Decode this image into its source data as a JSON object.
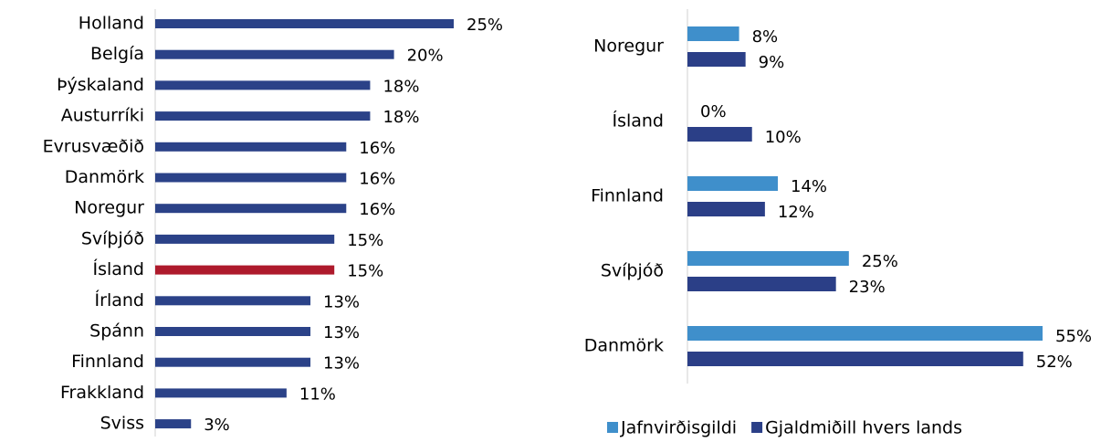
{
  "chart_data": [
    {
      "type": "bar",
      "orientation": "horizontal",
      "categories": [
        "Holland",
        "Belgía",
        "Þýskaland",
        "Austurríki",
        "Evrusvæðið",
        "Danmörk",
        "Noregur",
        "Svíþjóð",
        "Ísland",
        "Írland",
        "Spánn",
        "Finnland",
        "Frakkland",
        "Sviss"
      ],
      "values": [
        25,
        20,
        18,
        18,
        16,
        16,
        16,
        15,
        15,
        13,
        13,
        13,
        11,
        3
      ],
      "value_labels": [
        "25%",
        "20%",
        "18%",
        "18%",
        "16%",
        "16%",
        "16%",
        "15%",
        "15%",
        "13%",
        "13%",
        "13%",
        "11%",
        "3%"
      ],
      "colors": [
        "#2b4288",
        "#2b4288",
        "#2b4288",
        "#2b4288",
        "#2b4288",
        "#2b4288",
        "#2b4288",
        "#2b4288",
        "#ae1a2c",
        "#2b4288",
        "#2b4288",
        "#2b4288",
        "#2b4288",
        "#2b4288"
      ]
    },
    {
      "type": "bar",
      "orientation": "horizontal",
      "categories": [
        "Noregur",
        "Ísland",
        "Finnland",
        "Svíþjóð",
        "Danmörk"
      ],
      "series": [
        {
          "name": "Jafnvirðisgildi",
          "color": "#3f8fcb",
          "values": [
            8,
            0,
            14,
            25,
            55
          ],
          "value_labels": [
            "8%",
            "0%",
            "14%",
            "25%",
            "55%"
          ]
        },
        {
          "name": "Gjaldmiðill hvers lands",
          "color": "#2b3f87",
          "values": [
            9,
            10,
            12,
            23,
            52
          ],
          "value_labels": [
            "9%",
            "10%",
            "12%",
            "23%",
            "52%"
          ]
        }
      ],
      "legend": "bottom"
    }
  ]
}
